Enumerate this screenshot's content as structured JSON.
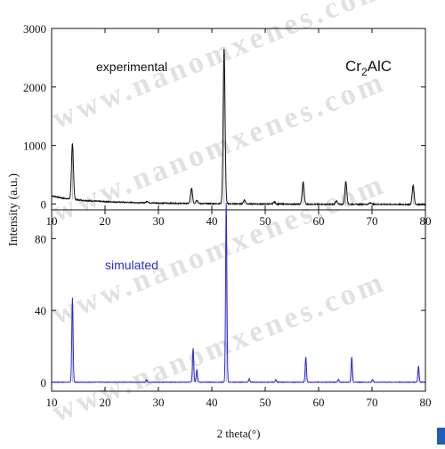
{
  "chart_data": [
    {
      "type": "line",
      "title": "",
      "annotation": "experimental",
      "compound": {
        "base": "Cr",
        "sub": "2",
        "tail": "AlC"
      },
      "xlabel": "2 theta(°)",
      "ylabel": "Intensity (a.u.)",
      "xlim": [
        10,
        80
      ],
      "ylim": [
        -100,
        3000
      ],
      "xticks": [
        10,
        20,
        30,
        40,
        50,
        60,
        70,
        80
      ],
      "yticks": [
        0,
        1000,
        2000,
        3000
      ],
      "color": "#111111",
      "background": {
        "x": [
          10,
          11,
          12,
          14,
          16,
          20,
          25,
          30,
          40,
          50,
          60,
          70,
          80
        ],
        "y": [
          140,
          120,
          100,
          80,
          60,
          40,
          25,
          15,
          5,
          0,
          -5,
          -5,
          -10
        ]
      },
      "peaks": [
        {
          "x": 13.9,
          "y": 950
        },
        {
          "x": 27.9,
          "y": 30
        },
        {
          "x": 36.2,
          "y": 260
        },
        {
          "x": 37.2,
          "y": 60
        },
        {
          "x": 42.3,
          "y": 2650
        },
        {
          "x": 46.1,
          "y": 70
        },
        {
          "x": 51.7,
          "y": 40
        },
        {
          "x": 57.1,
          "y": 380
        },
        {
          "x": 63.3,
          "y": 60
        },
        {
          "x": 65.1,
          "y": 390
        },
        {
          "x": 69.7,
          "y": 30
        },
        {
          "x": 77.7,
          "y": 330
        }
      ]
    },
    {
      "type": "line",
      "title": "",
      "annotation": "simulated",
      "xlabel": "2 theta(°)",
      "ylabel": "Intensity (a.u.)",
      "xlim": [
        10,
        80
      ],
      "ylim": [
        -5,
        96
      ],
      "xticks": [
        10,
        20,
        30,
        40,
        50,
        60,
        70,
        80
      ],
      "yticks": [
        0,
        40,
        80
      ],
      "color": "#2b2bd6",
      "peaks": [
        {
          "x": 13.9,
          "y": 47
        },
        {
          "x": 27.8,
          "y": 1.5
        },
        {
          "x": 36.5,
          "y": 19
        },
        {
          "x": 37.2,
          "y": 7
        },
        {
          "x": 42.7,
          "y": 100
        },
        {
          "x": 47.0,
          "y": 2
        },
        {
          "x": 52.0,
          "y": 1.5
        },
        {
          "x": 57.6,
          "y": 14
        },
        {
          "x": 63.7,
          "y": 1.5
        },
        {
          "x": 66.2,
          "y": 14
        },
        {
          "x": 70.1,
          "y": 1.5
        },
        {
          "x": 78.7,
          "y": 9
        }
      ]
    }
  ],
  "watermark": "www.nanomxenes.com",
  "palette": {
    "axis": "#111111",
    "experimental": "#111111",
    "simulated": "#2b2bd6",
    "watermark": "#c8c8c8",
    "corner_mark": "#1e5fb5"
  }
}
